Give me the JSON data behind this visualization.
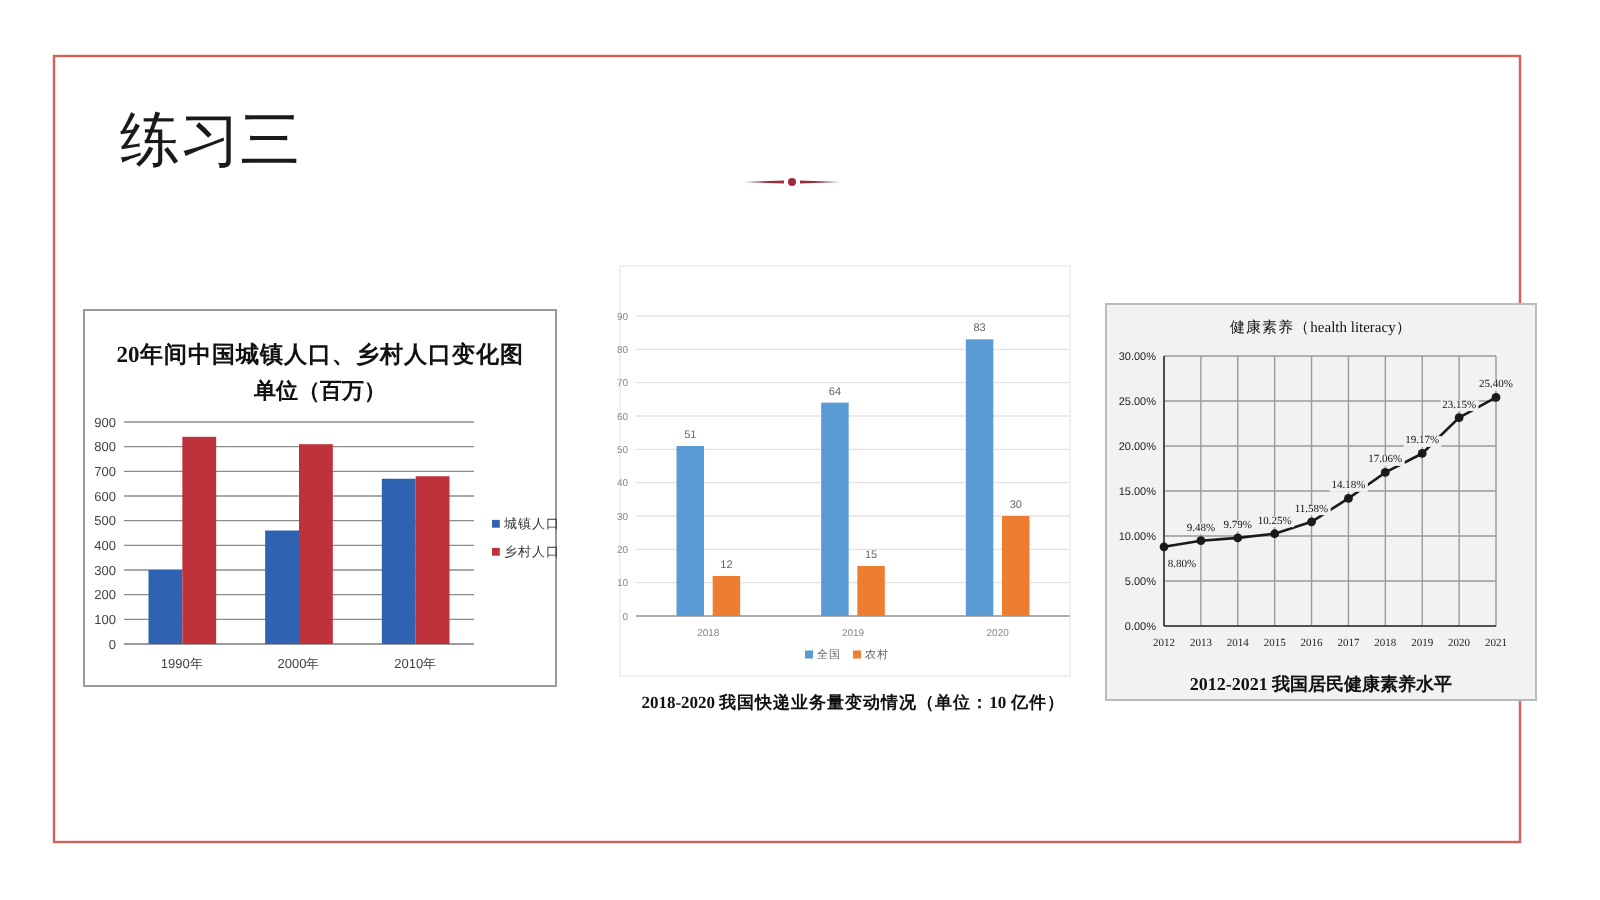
{
  "chart_data": [
    {
      "type": "other",
      "title": "练习三"
    },
    {
      "type": "bar",
      "title": "20年间中国城镇人口、乡村人口变化图",
      "subtitle": "单位（百万）",
      "categories": [
        "1990年",
        "2000年",
        "2010年"
      ],
      "series": [
        {
          "name": "城镇人口",
          "color": "#2f62b0",
          "values": [
            300,
            460,
            670
          ]
        },
        {
          "name": "乡村人口",
          "color": "#c0323b",
          "values": [
            840,
            810,
            680
          ]
        }
      ],
      "ylim": [
        0,
        900
      ],
      "yticks": [
        0,
        100,
        200,
        300,
        400,
        500,
        600,
        700,
        800,
        900
      ],
      "grid": "y",
      "legend": "right"
    },
    {
      "type": "bar",
      "title": "2018-2020 我国快递业务量变动情况（单位：10 亿件）",
      "categories": [
        "2018",
        "2019",
        "2020"
      ],
      "series": [
        {
          "name": "全国",
          "color": "#5b9bd5",
          "values": [
            51,
            64,
            83
          ]
        },
        {
          "name": "农村",
          "color": "#ed7d31",
          "values": [
            12,
            15,
            30
          ]
        }
      ],
      "ylim": [
        0,
        90
      ],
      "yticks": [
        0,
        10,
        20,
        30,
        40,
        50,
        60,
        70,
        80,
        90
      ],
      "grid": "y",
      "legend": "bottom",
      "data_labels": true
    },
    {
      "type": "line",
      "title": "健康素养（health literacy）",
      "annotations": [
        "2012-2021 我国居民健康素养水平"
      ],
      "x": [
        2012,
        2013,
        2014,
        2015,
        2016,
        2017,
        2018,
        2019,
        2020,
        2021
      ],
      "series": [
        {
          "color": "#1a1a1a",
          "values": [
            8.8,
            9.48,
            9.79,
            10.25,
            11.58,
            14.18,
            17.06,
            19.17,
            23.15,
            25.4
          ],
          "value_labels": [
            "8.80%",
            "9.48%",
            "9.79%",
            "10.25%",
            "11.58%",
            "14.18%",
            "17.06%",
            "19.17%",
            "23.15%",
            "25.40%"
          ]
        }
      ],
      "xlim": [
        2012,
        2021
      ],
      "xticks": [
        2012,
        2013,
        2014,
        2015,
        2016,
        2017,
        2018,
        2019,
        2020,
        2021
      ],
      "ylim": [
        0,
        30
      ],
      "yticks": [
        {
          "value": 0,
          "label": "0.00%"
        },
        {
          "value": 5,
          "label": "5.00%"
        },
        {
          "value": 10,
          "label": "10.00%"
        },
        {
          "value": 15,
          "label": "15.00%"
        },
        {
          "value": 20,
          "label": "20.00%"
        },
        {
          "value": 25,
          "label": "25.00%"
        },
        {
          "value": 30,
          "label": "30.00%"
        }
      ],
      "grid": true,
      "marker": "circle"
    }
  ]
}
